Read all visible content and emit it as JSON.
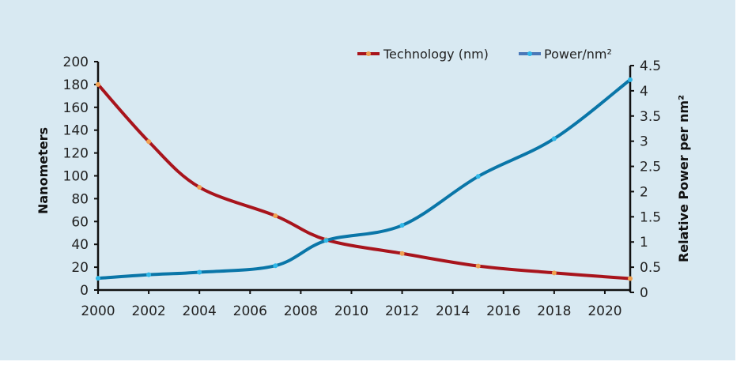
{
  "chart_data": {
    "type": "line",
    "title": "",
    "xlabel": "",
    "ylabel": "Nanometers",
    "y2label": "Relative Power per nm²",
    "xlim": [
      2000,
      2021
    ],
    "ylim": [
      0,
      200
    ],
    "y2lim": [
      0,
      4.5
    ],
    "xticks": [
      2000,
      2002,
      2004,
      2006,
      2008,
      2010,
      2012,
      2014,
      2016,
      2018,
      2020
    ],
    "yticks": [
      0,
      20,
      40,
      60,
      80,
      100,
      120,
      140,
      160,
      180,
      200
    ],
    "y2ticks": [
      "0",
      "0.5",
      "1",
      "1.5",
      "2",
      "2.5",
      "3",
      "3.5",
      "4",
      "4.5"
    ],
    "legend_placement": "top-right",
    "grid": false,
    "series": [
      {
        "name": "Technology (nm)",
        "axis": "left",
        "color": "#a8141c",
        "marker_color": "#f0a050",
        "x": [
          2000,
          2002,
          2004,
          2007,
          2009,
          2012,
          2015,
          2018,
          2021
        ],
        "y": [
          180,
          130,
          90,
          65,
          44,
          32,
          21,
          15,
          10
        ]
      },
      {
        "name": "Power/nm²",
        "axis": "right",
        "color": "#0a76a8",
        "marker_color": "#30b8e8",
        "x": [
          2000,
          2002,
          2004,
          2007,
          2009,
          2012,
          2015,
          2018,
          2021
        ],
        "y": [
          0.28,
          0.35,
          0.4,
          0.53,
          1.03,
          1.33,
          2.3,
          3.05,
          4.22
        ]
      }
    ]
  }
}
